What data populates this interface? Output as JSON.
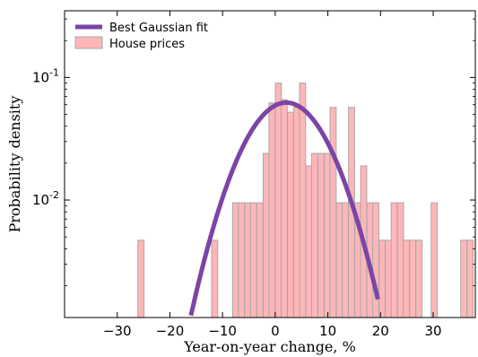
{
  "chart_data": {
    "type": "bar",
    "title": "",
    "xlabel": "Year-on-year change, %",
    "ylabel": "Probability density",
    "xlim": [
      -40,
      38
    ],
    "ylim": [
      0.0011,
      0.35
    ],
    "yscale": "log",
    "grid": false,
    "legend_position": "top-left",
    "x_ticks": [
      -30,
      -20,
      -10,
      0,
      10,
      20,
      30
    ],
    "x_tick_labels": [
      "−30",
      "−20",
      "−10",
      "0",
      "10",
      "20",
      "30"
    ],
    "y_ticks": [
      0.01,
      0.1
    ],
    "y_tick_labels": [
      {
        "base": "10",
        "exp": "-2"
      },
      {
        "base": "10",
        "exp": "-1"
      }
    ],
    "bin_width": 1.16,
    "series": [
      {
        "name": "House prices",
        "kind": "histogram",
        "color": "#ffb6b9",
        "edge_color": "#a8a8a8",
        "bins": [
          {
            "x": -25.5,
            "y": 0.0047
          },
          {
            "x": -11.5,
            "y": 0.0047
          },
          {
            "x": -7.5,
            "y": 0.0095
          },
          {
            "x": -6.4,
            "y": 0.0095
          },
          {
            "x": -5.2,
            "y": 0.0095
          },
          {
            "x": -4.1,
            "y": 0.0095
          },
          {
            "x": -2.9,
            "y": 0.0095
          },
          {
            "x": -1.7,
            "y": 0.024
          },
          {
            "x": -0.6,
            "y": 0.062
          },
          {
            "x": 0.6,
            "y": 0.09
          },
          {
            "x": 1.7,
            "y": 0.066
          },
          {
            "x": 2.9,
            "y": 0.052
          },
          {
            "x": 4.1,
            "y": 0.057
          },
          {
            "x": 5.2,
            "y": 0.09
          },
          {
            "x": 6.4,
            "y": 0.019
          },
          {
            "x": 7.5,
            "y": 0.024
          },
          {
            "x": 8.7,
            "y": 0.024
          },
          {
            "x": 9.9,
            "y": 0.024
          },
          {
            "x": 11.0,
            "y": 0.057
          },
          {
            "x": 12.2,
            "y": 0.0095
          },
          {
            "x": 13.3,
            "y": 0.0095
          },
          {
            "x": 14.5,
            "y": 0.057
          },
          {
            "x": 15.7,
            "y": 0.0095
          },
          {
            "x": 16.8,
            "y": 0.019
          },
          {
            "x": 18.0,
            "y": 0.0095
          },
          {
            "x": 19.1,
            "y": 0.0095
          },
          {
            "x": 20.3,
            "y": 0.0047
          },
          {
            "x": 21.5,
            "y": 0.0047
          },
          {
            "x": 22.6,
            "y": 0.0095
          },
          {
            "x": 23.8,
            "y": 0.0095
          },
          {
            "x": 24.9,
            "y": 0.0047
          },
          {
            "x": 26.1,
            "y": 0.0047
          },
          {
            "x": 27.3,
            "y": 0.0047
          },
          {
            "x": 30.2,
            "y": 0.0095
          },
          {
            "x": 35.8,
            "y": 0.0047
          },
          {
            "x": 37.0,
            "y": 0.0047
          }
        ]
      },
      {
        "name": "Best Gaussian fit",
        "kind": "line",
        "color": "#7a45a6",
        "mean": 2.1,
        "sigma": 6.4,
        "x_range": [
          -16,
          19.5
        ]
      }
    ]
  }
}
